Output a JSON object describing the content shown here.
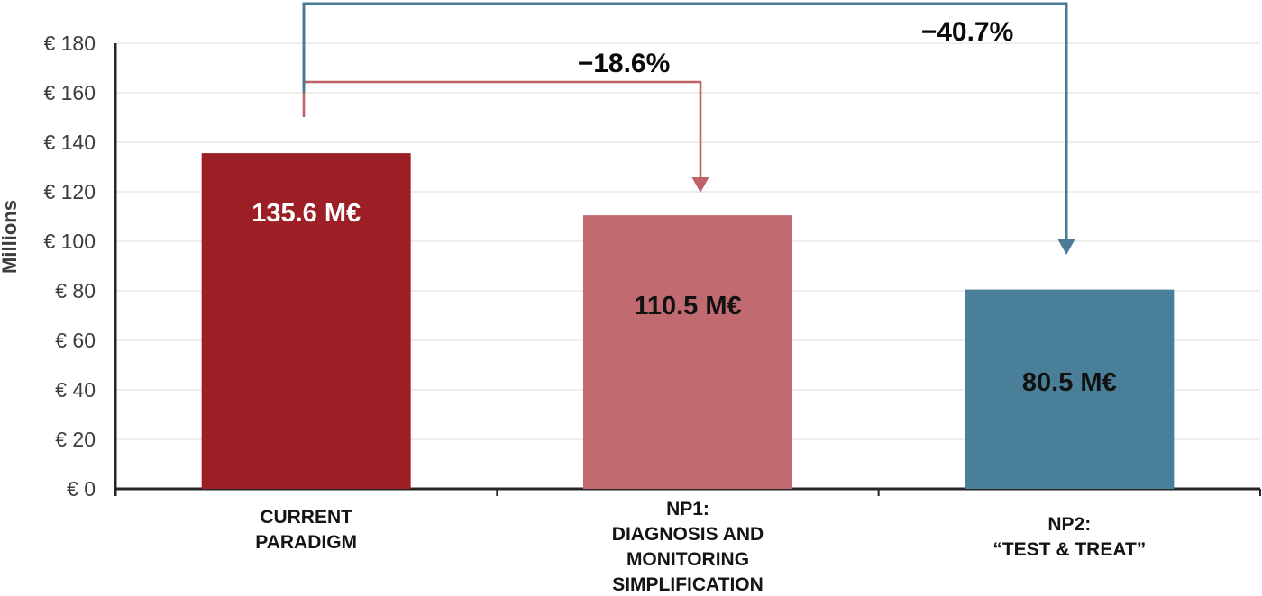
{
  "chart_data": {
    "type": "bar",
    "title": "",
    "ylabel": "Millions",
    "ylim": [
      0,
      180
    ],
    "ytick_step": 20,
    "grid": "horizontal",
    "legend": "none",
    "background": "#FFFFFF",
    "axis_color": "#262626",
    "grid_color": "#E9E9E9",
    "yticks": [
      {
        "value": 0,
        "label": "€ 0"
      },
      {
        "value": 20,
        "label": "€ 20"
      },
      {
        "value": 40,
        "label": "€ 40"
      },
      {
        "value": 60,
        "label": "€ 60"
      },
      {
        "value": 80,
        "label": "€ 80"
      },
      {
        "value": 100,
        "label": "€ 100"
      },
      {
        "value": 120,
        "label": "€ 120"
      },
      {
        "value": 140,
        "label": "€ 140"
      },
      {
        "value": 160,
        "label": "€ 160"
      },
      {
        "value": 180,
        "label": "€ 180"
      }
    ],
    "categories": [
      {
        "name": "current-paradigm",
        "lines": [
          "CURRENT",
          "PARADIGM"
        ]
      },
      {
        "name": "np1",
        "lines": [
          "NP1:",
          "DIAGNOSIS AND",
          "MONITORING",
          "SIMPLIFICATION"
        ]
      },
      {
        "name": "np2",
        "lines": [
          "NP2:",
          "“TEST & TREAT”"
        ]
      }
    ],
    "series": [
      {
        "name": "Total cost (M€)",
        "values": [
          135.6,
          110.5,
          80.5
        ]
      }
    ],
    "bar_labels": [
      "135.6 M€",
      "110.5 M€",
      "80.5 M€"
    ],
    "bar_colors": [
      "#9B1F24",
      "#C16A6F",
      "#4A7F99"
    ],
    "bar_label_colors": [
      "#FFFFFF",
      "#121212",
      "#121212"
    ],
    "annotations": [
      {
        "label": "−18.6%",
        "from": 0,
        "to": 1,
        "color": "#C06067"
      },
      {
        "label": "−40.7%",
        "from": 0,
        "to": 2,
        "color": "#4B7B97"
      }
    ]
  }
}
